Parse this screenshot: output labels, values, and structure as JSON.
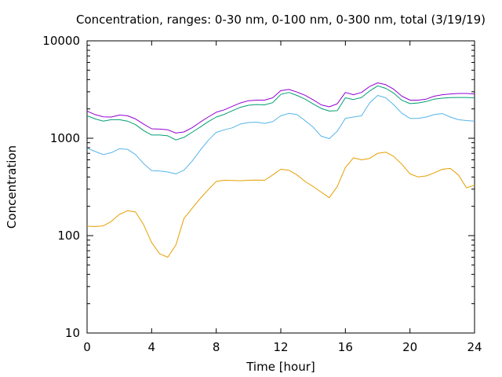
{
  "chart_data": {
    "type": "line",
    "title": "Concentration, ranges: 0-30 nm, 0-100 nm, 0-300 nm, total (3/19/19)",
    "xlabel": "Time [hour]",
    "ylabel": "Concentration",
    "xlim": [
      0,
      24
    ],
    "ylim": [
      10,
      10000
    ],
    "yscale": "log",
    "grid": false,
    "x_ticks": [
      0,
      4,
      8,
      12,
      16,
      20,
      24
    ],
    "x_tick_labels": [
      "0",
      "4",
      "8",
      "12",
      "16",
      "20",
      "24"
    ],
    "y_ticks": [
      10,
      100,
      1000,
      10000
    ],
    "y_tick_labels": [
      "10",
      "100",
      "1000",
      "10000"
    ],
    "x": [
      0,
      0.5,
      1,
      1.5,
      2,
      2.5,
      3,
      3.5,
      4,
      4.5,
      5,
      5.5,
      6,
      6.5,
      7,
      7.5,
      8,
      8.5,
      9,
      9.5,
      10,
      10.5,
      11,
      11.5,
      12,
      12.5,
      13,
      13.5,
      14,
      14.5,
      15,
      15.5,
      16,
      16.5,
      17,
      17.5,
      18,
      18.5,
      19,
      19.5,
      20,
      20.5,
      21,
      21.5,
      22,
      22.5,
      23,
      23.5,
      24
    ],
    "series": [
      {
        "color": "#e69f00",
        "values": [
          125,
          124,
          126,
          140,
          165,
          180,
          175,
          130,
          85,
          65,
          60,
          80,
          150,
          190,
          240,
          295,
          360,
          370,
          368,
          366,
          370,
          372,
          370,
          420,
          480,
          470,
          420,
          360,
          320,
          280,
          245,
          320,
          500,
          630,
          600,
          620,
          700,
          720,
          650,
          540,
          430,
          400,
          410,
          440,
          480,
          490,
          420,
          310,
          330
        ]
      },
      {
        "color": "#56b4e9",
        "values": [
          790,
          730,
          680,
          710,
          780,
          770,
          680,
          550,
          465,
          460,
          450,
          430,
          470,
          580,
          750,
          950,
          1150,
          1220,
          1280,
          1400,
          1450,
          1460,
          1420,
          1480,
          1700,
          1800,
          1750,
          1520,
          1300,
          1050,
          990,
          1180,
          1600,
          1650,
          1700,
          2300,
          2750,
          2600,
          2200,
          1800,
          1600,
          1600,
          1650,
          1750,
          1790,
          1650,
          1550,
          1520,
          1500
        ]
      },
      {
        "color": "#009e73",
        "values": [
          1700,
          1580,
          1500,
          1550,
          1550,
          1500,
          1380,
          1200,
          1080,
          1080,
          1060,
          960,
          1020,
          1150,
          1300,
          1480,
          1650,
          1760,
          1920,
          2080,
          2180,
          2220,
          2200,
          2320,
          2820,
          2950,
          2750,
          2520,
          2250,
          2020,
          1900,
          1920,
          2600,
          2500,
          2620,
          3050,
          3450,
          3250,
          2900,
          2450,
          2270,
          2300,
          2380,
          2520,
          2580,
          2610,
          2620,
          2620,
          2600
        ]
      },
      {
        "color": "#9400d3",
        "values": [
          1900,
          1750,
          1660,
          1650,
          1730,
          1700,
          1580,
          1400,
          1250,
          1240,
          1220,
          1130,
          1160,
          1280,
          1460,
          1650,
          1850,
          1960,
          2130,
          2300,
          2430,
          2460,
          2460,
          2600,
          3080,
          3170,
          2980,
          2760,
          2480,
          2200,
          2100,
          2260,
          2950,
          2800,
          2950,
          3400,
          3700,
          3550,
          3180,
          2700,
          2460,
          2460,
          2520,
          2700,
          2800,
          2850,
          2880,
          2880,
          2850
        ]
      }
    ]
  }
}
